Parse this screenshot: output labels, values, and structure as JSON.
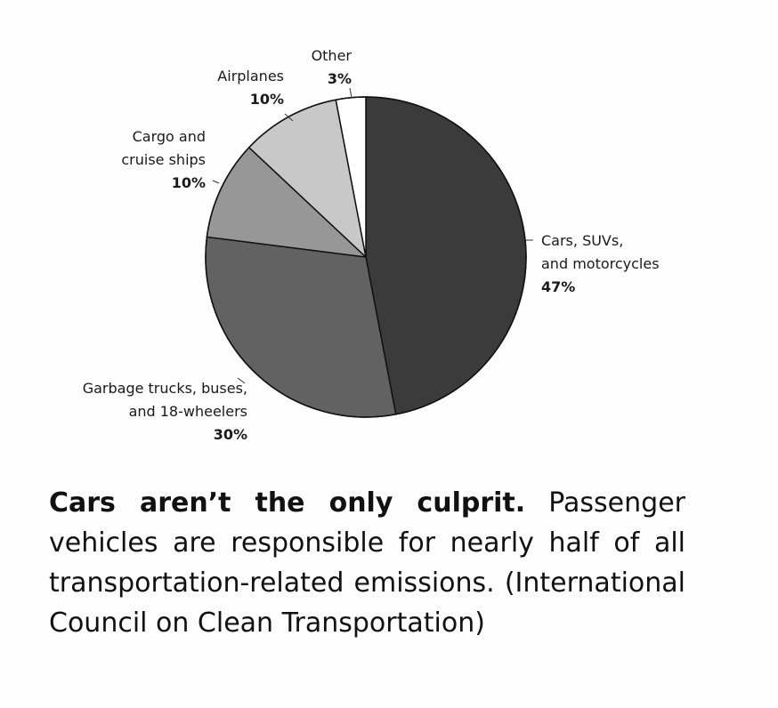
{
  "chart_data": {
    "type": "pie",
    "start": "12 o'clock",
    "direction": "clockwise",
    "slices": [
      {
        "label_lines": [
          "Cars, SUVs,",
          "and motorcycles"
        ],
        "value": 47,
        "value_label": "47%",
        "color": "#3b3b3b"
      },
      {
        "label_lines": [
          "Garbage trucks, buses,",
          "and 18-wheelers"
        ],
        "value": 30,
        "value_label": "30%",
        "color": "#626262"
      },
      {
        "label_lines": [
          "Cargo and",
          "cruise ships"
        ],
        "value": 10,
        "value_label": "10%",
        "color": "#979797"
      },
      {
        "label_lines": [
          "Airplanes"
        ],
        "value": 10,
        "value_label": "10%",
        "color": "#c7c8c7"
      },
      {
        "label_lines": [
          "Other"
        ],
        "value": 3,
        "value_label": "3%",
        "color": "#ffffff"
      }
    ]
  },
  "caption": {
    "lead": "Cars aren’t the only culprit.",
    "text": " Passenger vehicles are responsible for nearly half of all transportation-related emissions. (In­ternational Council on Clean Transportation)"
  }
}
